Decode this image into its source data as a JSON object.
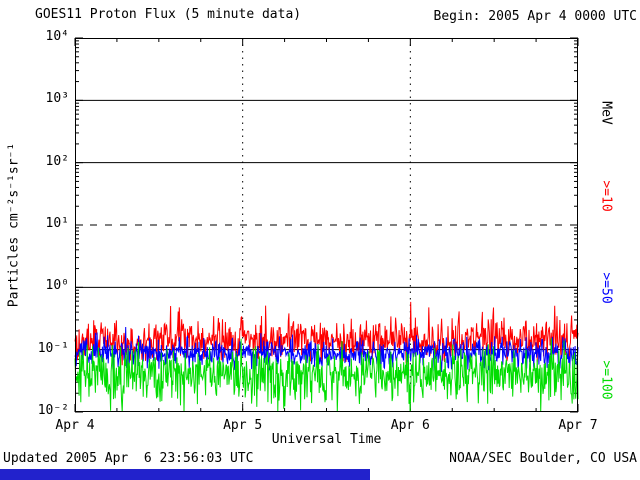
{
  "header": {
    "title": "GOES11 Proton Flux (5 minute data)",
    "begin_label": "Begin: 2005 Apr 4 0000 UTC"
  },
  "footer": {
    "updated": "Updated 2005 Apr  6 23:56:03 UTC",
    "credit": "NOAA/SEC Boulder, CO USA",
    "bar_color": "#2222cc"
  },
  "chart_data": {
    "type": "line",
    "title": "GOES11 Proton Flux (5 minute data)",
    "xlabel": "Universal Time",
    "ylabel": "Particles cm⁻²s⁻¹sr⁻¹",
    "right_axis_label": "MeV",
    "begin_time": "2005 Apr 4 0000 UTC",
    "updated_time": "2005 Apr 6 23:56:03 UTC",
    "x_tick_labels": [
      "Apr 4",
      "Apr 5",
      "Apr 6",
      "Apr 7"
    ],
    "y_tick_labels": [
      "10⁴",
      "10³",
      "10²",
      "10¹",
      "10⁰",
      "10⁻¹",
      "10⁻²"
    ],
    "y_tick_exponents": [
      4,
      3,
      2,
      1,
      0,
      -1,
      -2
    ],
    "ylim_exponents": [
      -2,
      4
    ],
    "x_range_days": 3,
    "samples_per_day": 288,
    "grid": {
      "solid_line_exponents": [
        3,
        2,
        0,
        -1
      ],
      "dashed_line_exponents": [
        1
      ],
      "vertical_day_lines": [
        1,
        2
      ]
    },
    "series": [
      {
        "name": ">=10",
        "unit": "MeV",
        "color": "#ff0000",
        "approx_flux": {
          "median": 0.14,
          "min": 0.07,
          "max": 0.45
        },
        "gen": {
          "seed": 101,
          "log10_base": -0.85,
          "log10_spread": 0.22,
          "spike_prob": 0.05,
          "spike_log10": 0.4,
          "spike_dir": 1
        }
      },
      {
        "name": ">=50",
        "unit": "MeV",
        "color": "#0000ff",
        "approx_flux": {
          "median": 0.09,
          "min": 0.045,
          "max": 0.16
        },
        "gen": {
          "seed": 202,
          "log10_base": -1.05,
          "log10_spread": 0.16,
          "spike_prob": 0.03,
          "spike_log10": 0.18,
          "spike_dir": 1
        }
      },
      {
        "name": ">=100",
        "unit": "MeV",
        "color": "#00dd00",
        "approx_flux": {
          "median": 0.04,
          "min": 0.012,
          "max": 0.09
        },
        "gen": {
          "seed": 303,
          "log10_base": -1.38,
          "log10_spread": 0.28,
          "spike_prob": 0.06,
          "spike_log10": 0.5,
          "spike_dir": -1
        }
      }
    ]
  }
}
